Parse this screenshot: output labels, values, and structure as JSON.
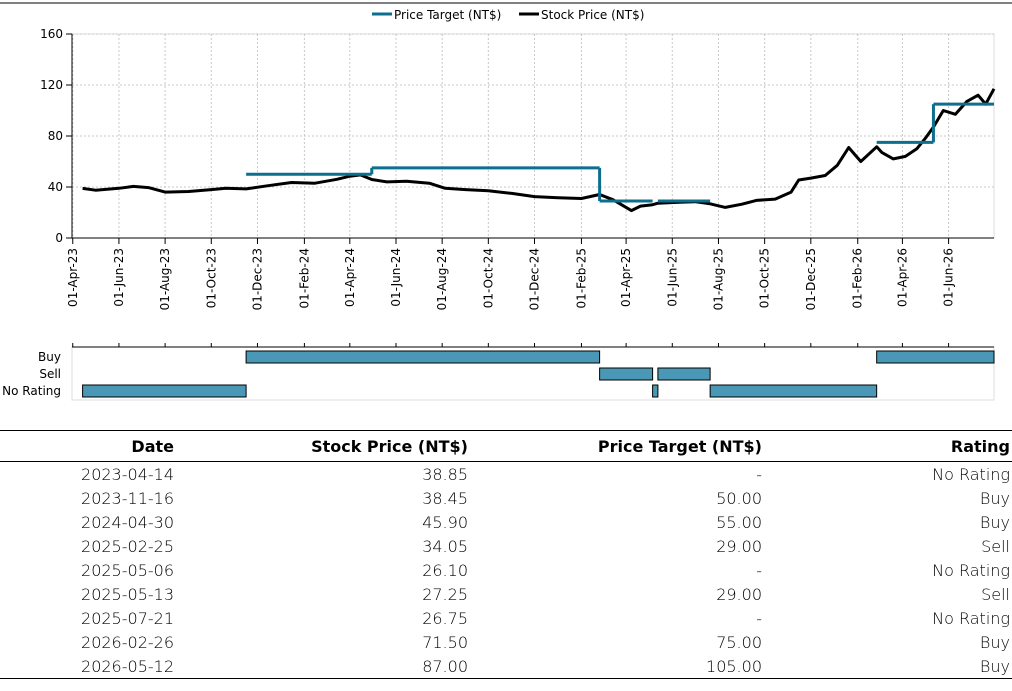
{
  "chart_data": {
    "type": "line",
    "legend": {
      "position": "top",
      "entries": [
        {
          "name": "Price Target (NT$)",
          "color": "#0e6e8e"
        },
        {
          "name": "Stock Price (NT$)",
          "color": "#000000"
        }
      ]
    },
    "x_axis": {
      "type": "date",
      "range": [
        "2023-03-31",
        "2026-07-31"
      ],
      "tick_labels": [
        "01-Apr-23",
        "01-Jun-23",
        "01-Aug-23",
        "01-Oct-23",
        "01-Dec-23",
        "01-Feb-24",
        "01-Apr-24",
        "01-Jun-24",
        "01-Aug-24",
        "01-Oct-24",
        "01-Dec-24",
        "01-Feb-25",
        "01-Apr-25",
        "01-Jun-25",
        "01-Aug-25",
        "01-Oct-25",
        "01-Dec-25",
        "01-Feb-26",
        "01-Apr-26",
        "01-Jun-26"
      ]
    },
    "y_axis": {
      "range": [
        0,
        160
      ],
      "ticks": [
        0,
        40,
        80,
        120,
        160
      ],
      "grid": true
    },
    "series": [
      {
        "name": "Stock Price (NT$)",
        "color": "#000000",
        "points": [
          [
            "2023-04-14",
            38.9
          ],
          [
            "2023-05-01",
            37.5
          ],
          [
            "2023-06-01",
            39.0
          ],
          [
            "2023-06-20",
            40.5
          ],
          [
            "2023-07-10",
            39.5
          ],
          [
            "2023-08-01",
            36.0
          ],
          [
            "2023-09-01",
            36.5
          ],
          [
            "2023-10-01",
            38.0
          ],
          [
            "2023-10-20",
            39.0
          ],
          [
            "2023-11-16",
            38.5
          ],
          [
            "2023-12-15",
            41.0
          ],
          [
            "2024-01-15",
            43.5
          ],
          [
            "2024-02-15",
            43.0
          ],
          [
            "2024-03-15",
            46.0
          ],
          [
            "2024-04-01",
            48.5
          ],
          [
            "2024-04-15",
            49.5
          ],
          [
            "2024-04-30",
            45.9
          ],
          [
            "2024-05-20",
            44.0
          ],
          [
            "2024-06-15",
            44.5
          ],
          [
            "2024-07-15",
            43.0
          ],
          [
            "2024-08-05",
            39.0
          ],
          [
            "2024-09-01",
            38.0
          ],
          [
            "2024-10-01",
            37.0
          ],
          [
            "2024-11-01",
            35.0
          ],
          [
            "2024-12-01",
            32.5
          ],
          [
            "2025-01-01",
            31.5
          ],
          [
            "2025-02-01",
            31.0
          ],
          [
            "2025-02-25",
            34.1
          ],
          [
            "2025-03-15",
            30.0
          ],
          [
            "2025-04-08",
            21.5
          ],
          [
            "2025-04-20",
            25.0
          ],
          [
            "2025-05-06",
            26.1
          ],
          [
            "2025-05-13",
            27.3
          ],
          [
            "2025-06-10",
            28.0
          ],
          [
            "2025-07-01",
            28.5
          ],
          [
            "2025-07-21",
            26.8
          ],
          [
            "2025-08-10",
            24.0
          ],
          [
            "2025-09-01",
            26.5
          ],
          [
            "2025-09-20",
            29.5
          ],
          [
            "2025-10-15",
            30.5
          ],
          [
            "2025-11-05",
            36.0
          ],
          [
            "2025-11-15",
            45.5
          ],
          [
            "2025-12-01",
            47.0
          ],
          [
            "2025-12-20",
            49.0
          ],
          [
            "2026-01-05",
            57.0
          ],
          [
            "2026-01-20",
            71.0
          ],
          [
            "2026-02-05",
            60.0
          ],
          [
            "2026-02-26",
            71.5
          ],
          [
            "2026-03-05",
            67.0
          ],
          [
            "2026-03-20",
            62.0
          ],
          [
            "2026-04-05",
            64.0
          ],
          [
            "2026-04-20",
            70.0
          ],
          [
            "2026-05-01",
            78.0
          ],
          [
            "2026-05-12",
            87.0
          ],
          [
            "2026-05-25",
            100.0
          ],
          [
            "2026-06-10",
            97.0
          ],
          [
            "2026-06-25",
            107.0
          ],
          [
            "2026-07-10",
            112.0
          ],
          [
            "2026-07-20",
            105.0
          ],
          [
            "2026-07-31",
            117.0
          ]
        ]
      },
      {
        "name": "Price Target (NT$)",
        "color": "#0e6e8e",
        "step": true,
        "segments": [
          {
            "from": "2023-11-16",
            "to": "2024-04-30",
            "value": 50.0
          },
          {
            "from": "2024-04-30",
            "to": "2025-02-25",
            "value": 55.0
          },
          {
            "from": "2025-02-25",
            "to": "2025-05-06",
            "value": 29.0
          },
          {
            "from": "2025-05-13",
            "to": "2025-07-21",
            "value": 29.0
          },
          {
            "from": "2026-02-26",
            "to": "2026-05-12",
            "value": 75.0
          },
          {
            "from": "2026-05-12",
            "to": "2026-07-31",
            "value": 105.0
          }
        ]
      }
    ],
    "rating_chart": {
      "categories": [
        "Buy",
        "Sell",
        "No Rating"
      ],
      "bar_color": "#4a97b6",
      "bars": [
        {
          "rating": "No Rating",
          "from": "2023-04-14",
          "to": "2023-11-16"
        },
        {
          "rating": "Buy",
          "from": "2023-11-16",
          "to": "2025-02-25"
        },
        {
          "rating": "Sell",
          "from": "2025-02-25",
          "to": "2025-05-06"
        },
        {
          "rating": "No Rating",
          "from": "2025-05-06",
          "to": "2025-05-13"
        },
        {
          "rating": "Sell",
          "from": "2025-05-13",
          "to": "2025-07-21"
        },
        {
          "rating": "No Rating",
          "from": "2025-07-21",
          "to": "2026-02-26"
        },
        {
          "rating": "Buy",
          "from": "2026-02-26",
          "to": "2026-07-31"
        }
      ]
    }
  },
  "table": {
    "headers": {
      "date": "Date",
      "price": "Stock Price (NT$)",
      "target": "Price Target (NT$)",
      "rating": "Rating"
    },
    "rows": [
      {
        "date": "2023-04-14",
        "price": "38.85",
        "target": "-",
        "rating": "No Rating"
      },
      {
        "date": "2023-11-16",
        "price": "38.45",
        "target": "50.00",
        "rating": "Buy"
      },
      {
        "date": "2024-04-30",
        "price": "45.90",
        "target": "55.00",
        "rating": "Buy"
      },
      {
        "date": "2025-02-25",
        "price": "34.05",
        "target": "29.00",
        "rating": "Sell"
      },
      {
        "date": "2025-05-06",
        "price": "26.10",
        "target": "-",
        "rating": "No Rating"
      },
      {
        "date": "2025-05-13",
        "price": "27.25",
        "target": "29.00",
        "rating": "Sell"
      },
      {
        "date": "2025-07-21",
        "price": "26.75",
        "target": "-",
        "rating": "No Rating"
      },
      {
        "date": "2026-02-26",
        "price": "71.50",
        "target": "75.00",
        "rating": "Buy"
      },
      {
        "date": "2026-05-12",
        "price": "87.00",
        "target": "105.00",
        "rating": "Buy"
      }
    ]
  }
}
